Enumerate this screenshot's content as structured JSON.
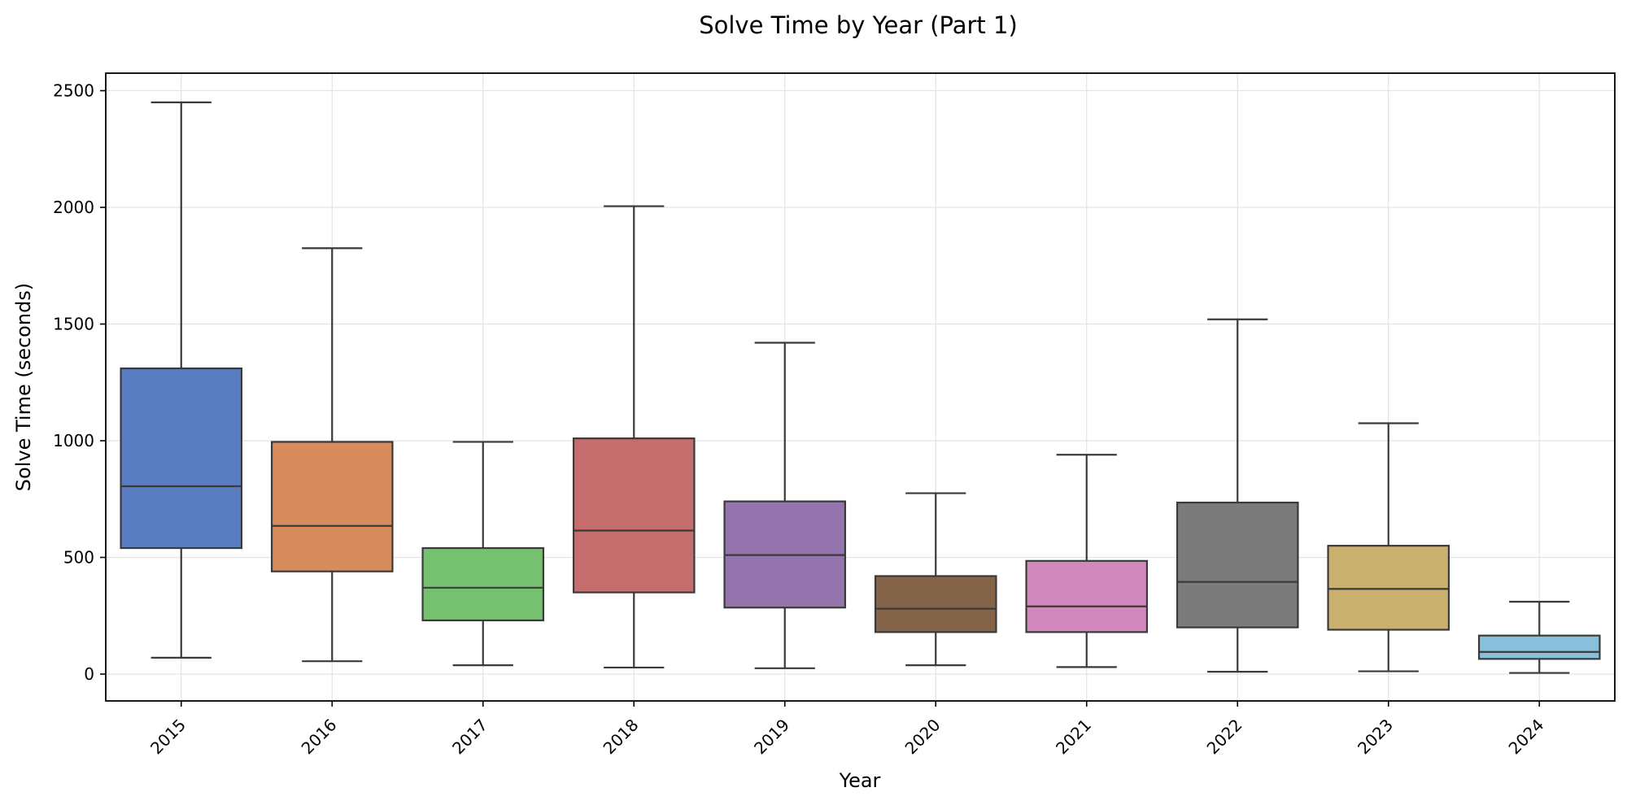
{
  "chart_data": {
    "type": "box",
    "title": "Solve Time by Year (Part 1)",
    "xlabel": "Year",
    "ylabel": "Solve Time (seconds)",
    "ylim": [
      -115,
      2575
    ],
    "yticks": [
      0,
      500,
      1000,
      1500,
      2000,
      2500
    ],
    "grid": true,
    "categories": [
      "2015",
      "2016",
      "2017",
      "2018",
      "2019",
      "2020",
      "2021",
      "2022",
      "2023",
      "2024"
    ],
    "boxes": [
      {
        "category": "2015",
        "whisker_low": 70,
        "q1": 540,
        "median": 805,
        "q3": 1310,
        "whisker_high": 2450,
        "color": "#5a7dc1"
      },
      {
        "category": "2016",
        "whisker_low": 55,
        "q1": 440,
        "median": 635,
        "q3": 995,
        "whisker_high": 1825,
        "color": "#d88b5d"
      },
      {
        "category": "2017",
        "whisker_low": 38,
        "q1": 230,
        "median": 370,
        "q3": 540,
        "whisker_high": 995,
        "color": "#76c170"
      },
      {
        "category": "2018",
        "whisker_low": 28,
        "q1": 350,
        "median": 615,
        "q3": 1010,
        "whisker_high": 2005,
        "color": "#c56c6c"
      },
      {
        "category": "2019",
        "whisker_low": 25,
        "q1": 285,
        "median": 510,
        "q3": 740,
        "whisker_high": 1420,
        "color": "#9474ad"
      },
      {
        "category": "2020",
        "whisker_low": 38,
        "q1": 180,
        "median": 280,
        "q3": 420,
        "whisker_high": 775,
        "color": "#836449"
      },
      {
        "category": "2021",
        "whisker_low": 30,
        "q1": 180,
        "median": 290,
        "q3": 485,
        "whisker_high": 940,
        "color": "#d188bd"
      },
      {
        "category": "2022",
        "whisker_low": 10,
        "q1": 200,
        "median": 395,
        "q3": 735,
        "whisker_high": 1520,
        "color": "#7b7b7b"
      },
      {
        "category": "2023",
        "whisker_low": 12,
        "q1": 190,
        "median": 365,
        "q3": 550,
        "whisker_high": 1075,
        "color": "#c9b06f"
      },
      {
        "category": "2024",
        "whisker_low": 5,
        "q1": 65,
        "median": 95,
        "q3": 165,
        "whisker_high": 310,
        "color": "#88bfdb"
      }
    ]
  }
}
